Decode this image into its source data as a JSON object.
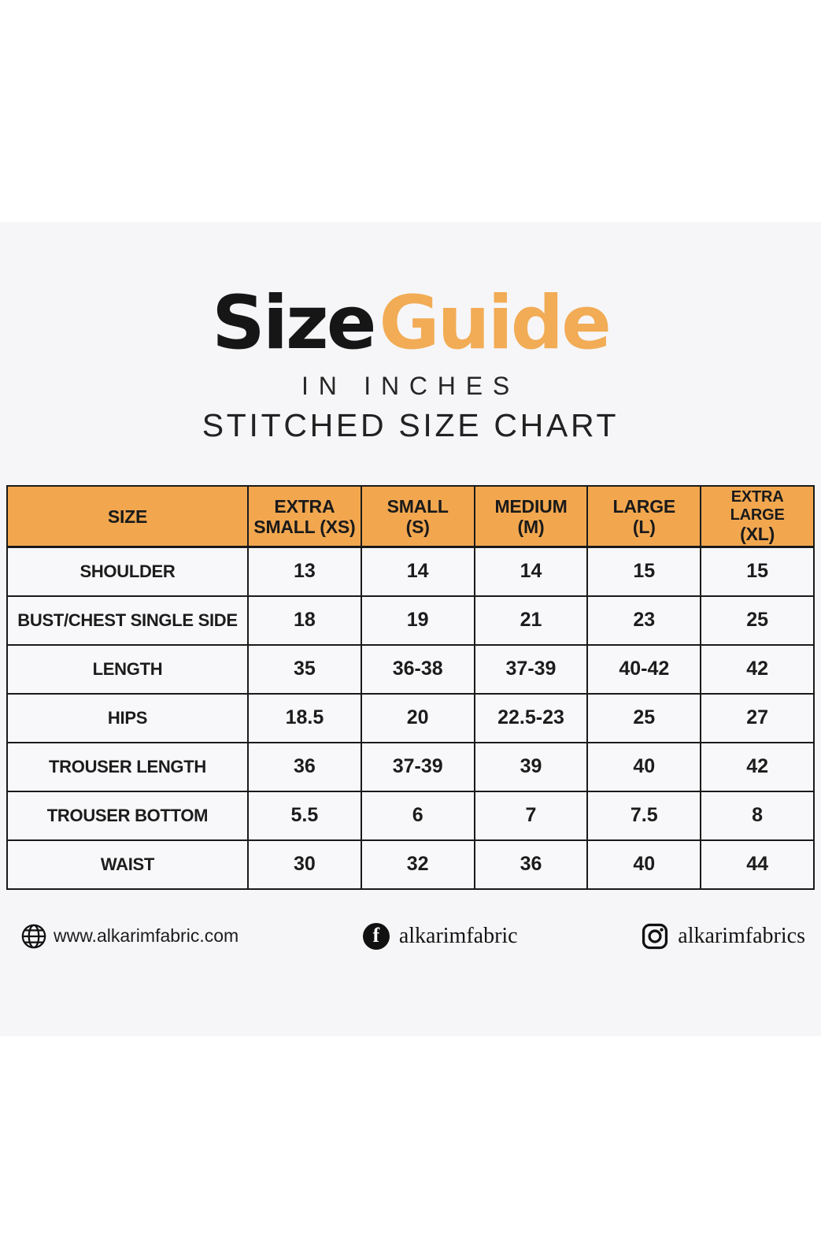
{
  "header": {
    "title_black": "Size",
    "title_orange": "Guide",
    "subtitle_units": "IN INCHES",
    "subtitle_chart": "STITCHED SIZE CHART"
  },
  "colors": {
    "accent_orange_header": "#f2a74f",
    "accent_orange_title": "#f2ac55",
    "card_background": "#f6f6f8",
    "text_black": "#1a1a1a"
  },
  "chart_data": {
    "type": "table",
    "title": "Size Guide",
    "subtitle": "IN INCHES — STITCHED SIZE CHART",
    "units": "inches",
    "columns": [
      "SIZE",
      "EXTRA SMALL (XS)",
      "SMALL (S)",
      "MEDIUM (M)",
      "LARGE (L)",
      "EXTRA LARGE (XL)"
    ],
    "column_lines": [
      [
        "SIZE"
      ],
      [
        "EXTRA",
        "SMALL (XS)"
      ],
      [
        "SMALL",
        "(S)"
      ],
      [
        "MEDIUM",
        "(M)"
      ],
      [
        "LARGE",
        "(L)"
      ],
      [
        "EXTRA LARGE",
        "(XL)"
      ]
    ],
    "rows": [
      {
        "label": "SHOULDER",
        "values": [
          "13",
          "14",
          "14",
          "15",
          "15"
        ]
      },
      {
        "label": "BUST/CHEST SINGLE SIDE",
        "values": [
          "18",
          "19",
          "21",
          "23",
          "25"
        ]
      },
      {
        "label": "LENGTH",
        "values": [
          "35",
          "36-38",
          "37-39",
          "40-42",
          "42"
        ]
      },
      {
        "label": "HIPS",
        "values": [
          "18.5",
          "20",
          "22.5-23",
          "25",
          "27"
        ]
      },
      {
        "label": "TROUSER LENGTH",
        "values": [
          "36",
          "37-39",
          "39",
          "40",
          "42"
        ]
      },
      {
        "label": "TROUSER BOTTOM",
        "values": [
          "5.5",
          "6",
          "7",
          "7.5",
          "8"
        ]
      },
      {
        "label": "WAIST",
        "values": [
          "30",
          "32",
          "36",
          "40",
          "44"
        ]
      }
    ]
  },
  "footer": {
    "website": {
      "icon": "globe-icon",
      "label": "www.alkarimfabric.com"
    },
    "facebook": {
      "icon": "facebook-icon",
      "label": "alkarimfabric",
      "glyph": "f"
    },
    "instagram": {
      "icon": "instagram-icon",
      "label": "alkarimfabrics"
    }
  }
}
